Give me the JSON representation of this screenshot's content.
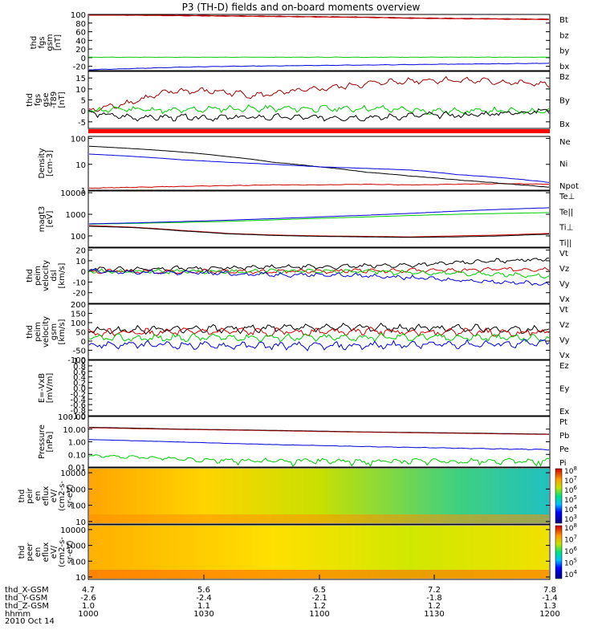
{
  "title": "P3 (TH-D) fields and on-board moments overview",
  "date": "2010 Oct 14",
  "colorbar_labels": [
    "10",
    "10",
    "10",
    "10",
    "10",
    "10"
  ],
  "chart_data": [
    {
      "type": "line",
      "ylabel": [
        "thd",
        "fgs",
        "gsm",
        "[nT]"
      ],
      "ylim": [
        -30,
        100
      ],
      "yticks": [
        -20,
        0,
        20,
        40,
        60,
        80,
        100
      ],
      "tick_labels": [
        "-20",
        "0",
        "20",
        "40",
        "60",
        "80",
        "100"
      ],
      "series": [
        {
          "name": "Bt",
          "color": "#990000",
          "values": [
            100,
            99,
            98,
            97,
            96,
            95,
            94,
            92,
            91,
            90,
            89
          ]
        },
        {
          "name": "bz",
          "color": "#cc0000",
          "values": [
            99,
            98,
            97,
            96,
            95,
            94,
            93,
            91,
            90,
            89,
            88
          ]
        },
        {
          "name": "by",
          "color": "#00cc00",
          "values": [
            1,
            1,
            1,
            1,
            1,
            1,
            1,
            1,
            1,
            1,
            1
          ]
        },
        {
          "name": "bx",
          "color": "#0000dd",
          "values": [
            -28,
            -25,
            -22,
            -20,
            -19,
            -18,
            -17,
            -16,
            -15,
            -14,
            -13
          ]
        }
      ]
    },
    {
      "type": "line",
      "ylabel": [
        "thd",
        "fgs",
        "gse",
        "-T89",
        "[nT]"
      ],
      "ylim": [
        -8,
        18
      ],
      "yticks": [
        -5,
        0,
        5,
        10,
        15
      ],
      "tick_labels": [
        "-5",
        "0",
        "5",
        "10",
        "15"
      ],
      "series": [
        {
          "name": "Bz",
          "color": "#990000",
          "values": [
            0,
            4,
            9,
            9,
            7,
            9,
            11,
            13,
            14,
            14,
            13,
            12
          ]
        },
        {
          "name": "By",
          "color": "#00cc00",
          "values": [
            0,
            1,
            0,
            1,
            1,
            1,
            1,
            1,
            0,
            0,
            0,
            0
          ]
        },
        {
          "name": "Bx",
          "color": "#000000",
          "values": [
            -1,
            -3,
            -3,
            -3,
            -3,
            -3,
            -3,
            -3,
            -2,
            -2,
            -1,
            0
          ]
        }
      ]
    },
    {
      "type": "line",
      "log": true,
      "ylabel": [
        "Density",
        "[cm-3]"
      ],
      "ylim": [
        1,
        120
      ],
      "yticks": [
        1,
        10,
        100
      ],
      "tick_labels": [
        "1",
        "10",
        "100"
      ],
      "series": [
        {
          "name": "Ne",
          "color": "#cc0000",
          "values": [
            1.2,
            1.3,
            1.4,
            1.5,
            1.6,
            1.6,
            1.7,
            1.6,
            1.7,
            1.8,
            1.7
          ]
        },
        {
          "name": "Ni",
          "color": "#000000",
          "values": [
            50,
            40,
            30,
            20,
            12,
            8,
            5,
            3.5,
            2.5,
            1.8,
            1.3
          ]
        },
        {
          "name": "Npot",
          "color": "#0000dd",
          "values": [
            25,
            20,
            15,
            12,
            10,
            8,
            7,
            6,
            4,
            3,
            2
          ]
        }
      ]
    },
    {
      "type": "line",
      "log": true,
      "ylabel": [
        "magt3",
        "[eV]"
      ],
      "ylim": [
        30,
        12000
      ],
      "yticks": [
        100,
        1000,
        10000
      ],
      "tick_labels": [
        "100",
        "1000",
        "10000"
      ],
      "series": [
        {
          "name": "Te⊥",
          "color": "#cc0000",
          "values": [
            300,
            250,
            180,
            130,
            110,
            100,
            95,
            90,
            100,
            110,
            130
          ]
        },
        {
          "name": "Te||",
          "color": "#000000",
          "values": [
            280,
            240,
            170,
            125,
            105,
            95,
            90,
            85,
            90,
            100,
            120
          ]
        },
        {
          "name": "Ti⊥",
          "color": "#00cc00",
          "values": [
            350,
            380,
            420,
            470,
            550,
            650,
            750,
            880,
            1000,
            1100,
            1200
          ]
        },
        {
          "name": "Ti||",
          "color": "#0000dd",
          "values": [
            360,
            400,
            460,
            530,
            630,
            750,
            900,
            1100,
            1400,
            1700,
            2000
          ]
        }
      ]
    },
    {
      "type": "line",
      "ylabel": [
        "thd",
        "peim",
        "velocity",
        "dsl",
        "[km/s]"
      ],
      "ylim": [
        -30,
        22
      ],
      "yticks": [
        -20,
        -10,
        0,
        10,
        20
      ],
      "tick_labels": [
        "-20",
        "-10",
        "0",
        "10",
        "20"
      ],
      "series": [
        {
          "name": "Vt",
          "color": "#000000",
          "values": [
            2,
            2,
            3,
            3,
            4,
            4,
            5,
            6,
            8,
            10,
            12
          ]
        },
        {
          "name": "Vz",
          "color": "#cc0000",
          "values": [
            0,
            0,
            0,
            0,
            0,
            0,
            1,
            1,
            1,
            2,
            2
          ]
        },
        {
          "name": "Vy",
          "color": "#00cc00",
          "values": [
            0,
            0,
            0,
            0,
            0,
            0,
            0,
            -1,
            -2,
            -3,
            -4
          ]
        },
        {
          "name": "Vx",
          "color": "#0000dd",
          "values": [
            0,
            -1,
            -1,
            -2,
            -3,
            -3,
            -4,
            -6,
            -8,
            -10,
            -12
          ]
        }
      ]
    },
    {
      "type": "line",
      "ylabel": [
        "thd",
        "peim",
        "velocity",
        "gsm",
        "[km/s]"
      ],
      "ylim": [
        -100,
        200
      ],
      "yticks": [
        -100,
        -50,
        0,
        50,
        100,
        150,
        200
      ],
      "tick_labels": [
        "-100",
        "-50",
        "0",
        "50",
        "100",
        "150",
        "200"
      ],
      "series": [
        {
          "name": "Vt",
          "color": "#000000",
          "values": [
            55,
            60,
            65,
            65,
            70,
            70,
            75,
            70,
            70,
            65,
            60
          ]
        },
        {
          "name": "Vz",
          "color": "#cc0000",
          "values": [
            45,
            45,
            48,
            50,
            50,
            52,
            55,
            50,
            50,
            48,
            45
          ]
        },
        {
          "name": "Vy",
          "color": "#00cc00",
          "values": [
            15,
            15,
            18,
            20,
            20,
            18,
            20,
            22,
            20,
            18,
            15
          ]
        },
        {
          "name": "Vx",
          "color": "#0000dd",
          "values": [
            -20,
            -20,
            -22,
            -25,
            -25,
            -28,
            -25,
            -20,
            -18,
            -15,
            -12
          ]
        }
      ]
    },
    {
      "type": "line",
      "ylabel": [
        "E=-VxB",
        "[mV/m]"
      ],
      "ylim": [
        -1,
        1
      ],
      "yticks": [
        -1,
        -0.8,
        -0.6,
        -0.4,
        -0.2,
        0,
        0.2,
        0.4,
        0.6,
        0.8,
        1
      ],
      "tick_labels": [
        "-1.0",
        "-0.8",
        "-0.6",
        "-0.4",
        "-0.2",
        "0.0",
        "0.2",
        "0.4",
        "0.6",
        "0.8",
        "1.0"
      ],
      "series": [
        {
          "name": "Ez",
          "color": "#cc0000",
          "values": []
        },
        {
          "name": "Ey",
          "color": "#00cc00",
          "values": []
        },
        {
          "name": "Ex",
          "color": "#0000dd",
          "values": []
        }
      ]
    },
    {
      "type": "line",
      "log": true,
      "ylabel": [
        "Pressure",
        "[nPa]"
      ],
      "ylim": [
        0.01,
        100
      ],
      "yticks": [
        0.01,
        0.1,
        1,
        10,
        100
      ],
      "tick_labels": [
        "0.01",
        "0.10",
        "1.00",
        "10.00",
        "100.00"
      ],
      "series": [
        {
          "name": "Pt",
          "color": "#000000",
          "values": [
            14,
            12,
            10,
            9,
            8,
            7,
            6,
            5.5,
            5,
            4.5,
            4
          ]
        },
        {
          "name": "Pb",
          "color": "#990000",
          "values": [
            13,
            11,
            9.5,
            8.5,
            7.5,
            6.5,
            5.8,
            5.2,
            4.7,
            4.2,
            3.8
          ]
        },
        {
          "name": "Pe",
          "color": "#00cc00",
          "values": [
            0.08,
            0.06,
            0.045,
            0.035,
            0.03,
            0.03,
            0.028,
            0.03,
            0.03,
            0.03,
            0.03
          ]
        },
        {
          "name": "Pi",
          "color": "#0000dd",
          "values": [
            1.5,
            1.2,
            0.95,
            0.75,
            0.6,
            0.5,
            0.42,
            0.36,
            0.31,
            0.27,
            0.24
          ]
        }
      ]
    },
    {
      "type": "heatmap",
      "log": true,
      "ylabel": [
        "thd",
        "peir",
        "en",
        "eflux",
        "eV/",
        "(cm2-s-",
        "sr-eV)"
      ],
      "ylim": [
        7,
        20000
      ],
      "yticks": [
        10,
        100,
        1000,
        10000
      ],
      "tick_labels": [
        "10",
        "100",
        "1000",
        "10000"
      ],
      "colorbar": {
        "min_exp": 3,
        "max_exp": 8,
        "exps": [
          "3",
          "4",
          "5",
          "6",
          "7",
          "8"
        ]
      }
    },
    {
      "type": "heatmap",
      "log": true,
      "ylabel": [
        "thd",
        "peer",
        "en",
        "eflux",
        "eV/",
        "(cm2-s-",
        "sr-eV)"
      ],
      "ylim": [
        7,
        20000
      ],
      "yticks": [
        10,
        100,
        1000,
        10000
      ],
      "tick_labels": [
        "10",
        "100",
        "1000",
        "10000"
      ],
      "colorbar": {
        "min_exp": 4,
        "max_exp": 8,
        "exps": [
          "4",
          "5",
          "6",
          "7",
          "8"
        ]
      }
    }
  ],
  "x_axis": {
    "rows": [
      {
        "label": "thd_X-GSM",
        "values": [
          "4.7",
          "5.6",
          "6.5",
          "7.2",
          "7.8"
        ]
      },
      {
        "label": "thd_Y-GSM",
        "values": [
          "-2.6",
          "-2.4",
          "-2.1",
          "-1.8",
          "-1.4"
        ]
      },
      {
        "label": "thd_Z-GSM",
        "values": [
          "1.0",
          "1.1",
          "1.2",
          "1.2",
          "1.3"
        ]
      },
      {
        "label": "hhmm",
        "values": [
          "1000",
          "1030",
          "1100",
          "1130",
          "1200"
        ]
      }
    ]
  }
}
